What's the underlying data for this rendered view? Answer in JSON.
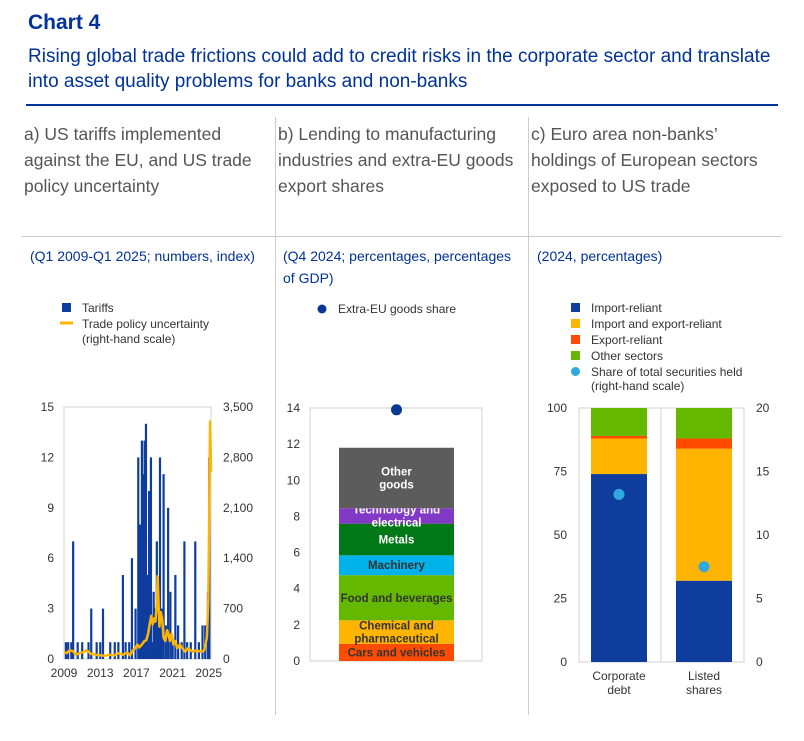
{
  "header": {
    "chart_number": "Chart 4",
    "title": "Rising global trade frictions could add to credit risks in the corporate sector and translate into asset quality problems for banks and non-banks"
  },
  "colors": {
    "brand_blue": "#003299",
    "dark_blue": "#0f3d9e",
    "yellow": "#ffb400",
    "orange": "#ff4b00",
    "green": "#65b800",
    "cyan": "#00b1ea",
    "purple": "#8139c6",
    "dark_green": "#007816",
    "grey": "#5c5c5c",
    "dot_blue": "#0a3694",
    "dot_cyan": "#2fa9e0"
  },
  "panels": [
    {
      "title": "a) US tariffs implemented against the EU, and US trade policy uncertainty",
      "subtitle": "(Q1 2009-Q1 2025; numbers, index)"
    },
    {
      "title": "b) Lending to manufacturing industries and extra-EU goods export shares",
      "subtitle": "(Q4 2024; percentages, percentages of GDP)"
    },
    {
      "title": "c) Euro area non-banks’ holdings of European sectors exposed to US trade",
      "subtitle": "(2024, percentages)"
    }
  ],
  "chart_data": [
    {
      "type": "bar",
      "legend": [
        "Tariffs",
        "Trade policy uncertainty",
        "(right-hand scale)"
      ],
      "x_range": [
        2009,
        2025.25
      ],
      "x_ticks": [
        "2009",
        "2013",
        "2017",
        "2021",
        "2025"
      ],
      "ylim_left": [
        0,
        15
      ],
      "yticks_left": [
        "0",
        "3",
        "6",
        "9",
        "12",
        "15"
      ],
      "ylim_right": [
        0,
        3500
      ],
      "yticks_right": [
        "0",
        "700",
        "1,400",
        "2,100",
        "2,800",
        "3,500"
      ],
      "series": [
        {
          "name": "Tariffs",
          "axis": "left",
          "points": [
            [
              2009.2,
              1
            ],
            [
              2009.45,
              1
            ],
            [
              2009.8,
              1
            ],
            [
              2010.0,
              7
            ],
            [
              2010.5,
              1
            ],
            [
              2011.0,
              1
            ],
            [
              2011.7,
              1
            ],
            [
              2012.0,
              3
            ],
            [
              2012.6,
              1
            ],
            [
              2013.0,
              1
            ],
            [
              2013.3,
              3
            ],
            [
              2014.1,
              1
            ],
            [
              2014.6,
              1
            ],
            [
              2015.0,
              1
            ],
            [
              2015.5,
              5
            ],
            [
              2015.8,
              1
            ],
            [
              2016.2,
              1
            ],
            [
              2016.5,
              6
            ],
            [
              2016.9,
              3
            ],
            [
              2017.2,
              12
            ],
            [
              2017.4,
              8
            ],
            [
              2017.6,
              13
            ],
            [
              2017.75,
              11
            ],
            [
              2017.9,
              13
            ],
            [
              2018.05,
              14
            ],
            [
              2018.2,
              5
            ],
            [
              2018.4,
              10
            ],
            [
              2018.6,
              12
            ],
            [
              2018.75,
              1
            ],
            [
              2018.9,
              4
            ],
            [
              2019.1,
              3
            ],
            [
              2019.25,
              7
            ],
            [
              2019.4,
              3
            ],
            [
              2019.6,
              12
            ],
            [
              2019.8,
              3
            ],
            [
              2020.0,
              11
            ],
            [
              2020.25,
              2
            ],
            [
              2020.5,
              9
            ],
            [
              2020.75,
              4
            ],
            [
              2021.0,
              1
            ],
            [
              2021.3,
              5
            ],
            [
              2021.6,
              2
            ],
            [
              2022.0,
              1
            ],
            [
              2022.3,
              7
            ],
            [
              2022.6,
              1
            ],
            [
              2023.0,
              1
            ],
            [
              2023.5,
              7
            ],
            [
              2023.9,
              1
            ],
            [
              2024.3,
              2
            ],
            [
              2024.6,
              2
            ],
            [
              2024.9,
              4
            ],
            [
              2025.05,
              12
            ]
          ]
        },
        {
          "name": "Trade policy uncertainty",
          "axis": "right",
          "points": [
            [
              2009.0,
              100
            ],
            [
              2009.3,
              80
            ],
            [
              2009.6,
              120
            ],
            [
              2010.0,
              110
            ],
            [
              2010.3,
              60
            ],
            [
              2010.7,
              80
            ],
            [
              2011.0,
              90
            ],
            [
              2011.5,
              120
            ],
            [
              2012.0,
              70
            ],
            [
              2012.5,
              60
            ],
            [
              2013.0,
              50
            ],
            [
              2013.5,
              45
            ],
            [
              2014.0,
              60
            ],
            [
              2014.5,
              50
            ],
            [
              2015.0,
              80
            ],
            [
              2015.5,
              60
            ],
            [
              2016.0,
              90
            ],
            [
              2016.3,
              50
            ],
            [
              2016.6,
              120
            ],
            [
              2016.9,
              150
            ],
            [
              2017.1,
              200
            ],
            [
              2017.3,
              160
            ],
            [
              2017.6,
              200
            ],
            [
              2017.9,
              250
            ],
            [
              2018.1,
              260
            ],
            [
              2018.3,
              350
            ],
            [
              2018.5,
              500
            ],
            [
              2018.65,
              600
            ],
            [
              2018.8,
              480
            ],
            [
              2018.95,
              560
            ],
            [
              2019.1,
              520
            ],
            [
              2019.25,
              750
            ],
            [
              2019.35,
              1150
            ],
            [
              2019.45,
              800
            ],
            [
              2019.55,
              450
            ],
            [
              2019.7,
              650
            ],
            [
              2019.85,
              550
            ],
            [
              2020.0,
              300
            ],
            [
              2020.2,
              250
            ],
            [
              2020.4,
              400
            ],
            [
              2020.55,
              350
            ],
            [
              2020.7,
              250
            ],
            [
              2020.9,
              350
            ],
            [
              2021.1,
              200
            ],
            [
              2021.3,
              250
            ],
            [
              2021.5,
              150
            ],
            [
              2021.8,
              200
            ],
            [
              2022.1,
              150
            ],
            [
              2022.4,
              100
            ],
            [
              2022.7,
              150
            ],
            [
              2023.0,
              120
            ],
            [
              2023.3,
              100
            ],
            [
              2023.6,
              120
            ],
            [
              2023.9,
              110
            ],
            [
              2024.2,
              100
            ],
            [
              2024.5,
              120
            ],
            [
              2024.8,
              300
            ],
            [
              2024.95,
              800
            ],
            [
              2025.05,
              2000
            ],
            [
              2025.15,
              3300
            ],
            [
              2025.25,
              2600
            ]
          ]
        }
      ]
    },
    {
      "type": "bar",
      "legend": [
        "Extra-EU goods share"
      ],
      "ylim": [
        0,
        14
      ],
      "yticks": [
        "0",
        "2",
        "4",
        "6",
        "8",
        "10",
        "12",
        "14"
      ],
      "stack": [
        {
          "name": "Cars and vehicles",
          "from": 0,
          "to": 0.95,
          "color_key": "orange",
          "text": "#333333"
        },
        {
          "name": "Chemical and pharmaceutical",
          "from": 0.95,
          "to": 2.25,
          "color_key": "yellow",
          "text": "#333333"
        },
        {
          "name": "Food and beverages",
          "from": 2.25,
          "to": 4.75,
          "color_key": "green",
          "text": "#333333"
        },
        {
          "name": "Machinery",
          "from": 4.75,
          "to": 5.85,
          "color_key": "cyan",
          "text": "#333333"
        },
        {
          "name": "Metals",
          "from": 5.85,
          "to": 7.6,
          "color_key": "dark_green",
          "text": "#ffffff"
        },
        {
          "name": "Technology and electrical",
          "from": 7.6,
          "to": 8.45,
          "color_key": "purple",
          "text": "#ffffff"
        },
        {
          "name": "Other goods",
          "from": 8.45,
          "to": 11.8,
          "color_key": "grey",
          "text": "#ffffff"
        }
      ],
      "marker": {
        "name": "Extra-EU goods share",
        "value": 13.9
      }
    },
    {
      "type": "bar",
      "legend": [
        "Import-reliant",
        "Import and export-reliant",
        "Export-reliant",
        "Other sectors",
        "Share of total securities held",
        "(right-hand scale)"
      ],
      "categories": [
        "Corporate debt",
        "Listed shares"
      ],
      "ylim_left": [
        0,
        100
      ],
      "yticks_left": [
        "0",
        "25",
        "50",
        "75",
        "100"
      ],
      "ylim_right": [
        0,
        20
      ],
      "yticks_right": [
        "0",
        "5",
        "10",
        "15",
        "20"
      ],
      "series": [
        {
          "name": "Import-reliant",
          "color_key": "dark_blue",
          "values": [
            74,
            32
          ]
        },
        {
          "name": "Import and export-reliant",
          "color_key": "yellow",
          "values": [
            14,
            52
          ]
        },
        {
          "name": "Export-reliant",
          "color_key": "orange",
          "values": [
            1,
            4
          ]
        },
        {
          "name": "Other sectors",
          "color_key": "green",
          "values": [
            11,
            12
          ]
        }
      ],
      "markers": {
        "name": "Share of total securities held",
        "axis": "right",
        "values": [
          13.2,
          7.5
        ]
      }
    }
  ]
}
